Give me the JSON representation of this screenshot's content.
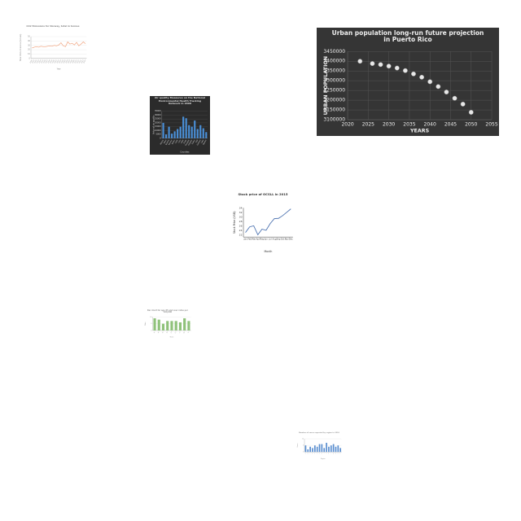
{
  "chart_data": [
    {
      "type": "line",
      "title": "CO2 Emissions for Norway, total in tonnes",
      "x_label": "Year",
      "y_label": "Total CO2 emissions (tonnes)",
      "categories": [
        "1990",
        "1991",
        "1992",
        "1993",
        "1994",
        "1995",
        "1996",
        "1997",
        "1998",
        "1999",
        "2000",
        "2001",
        "2002",
        "2003",
        "2004",
        "2005",
        "2006",
        "2007",
        "2008",
        "2009",
        "2010",
        "2011",
        "2012",
        "2013",
        "2014"
      ],
      "values": [
        24,
        26,
        27,
        26,
        28,
        27,
        27,
        28,
        29,
        28,
        30,
        29,
        31,
        36,
        29,
        27,
        38,
        33,
        35,
        31,
        37,
        29,
        33,
        38,
        34
      ],
      "color": "#f0a07a",
      "ylim": [
        0,
        50
      ],
      "yticks": [
        0,
        10,
        20,
        30,
        40,
        50
      ],
      "grid": true
    },
    {
      "type": "bar",
      "title": "Air quality Measures on the National Environmental Health Tracking Network in 2008",
      "x_label": "Counties",
      "y_label": "Value of air quality",
      "categories": [
        "Adams",
        "Allen",
        "Bartow",
        "Benton",
        "Butler",
        "Clark",
        "Clay",
        "Cobb",
        "Dade",
        "Douglas",
        "Franklin",
        "Fulton",
        "Hall",
        "Jackson",
        "Lake",
        "Marion"
      ],
      "values": [
        20000,
        5000,
        15000,
        6000,
        9000,
        12000,
        15000,
        28000,
        26000,
        17000,
        15000,
        23000,
        12000,
        17000,
        13000,
        8000
      ],
      "color": "#4a90d9",
      "ylim": [
        0,
        35000
      ],
      "yticks": [
        0,
        5000,
        10000,
        15000,
        20000,
        25000,
        30000,
        35000
      ],
      "grid": true
    },
    {
      "type": "scatter",
      "title": "Urban population long-run future projection in Puerto Rico",
      "x_label": "YEARS",
      "y_label": "URBAN POPULATION",
      "x": [
        2023,
        2026,
        2028,
        2030,
        2032,
        2034,
        2036,
        2038,
        2040,
        2042,
        2044,
        2046,
        2048,
        2050
      ],
      "values": [
        3400000,
        3388000,
        3383000,
        3375000,
        3365000,
        3352000,
        3335000,
        3318000,
        3295000,
        3270000,
        3242000,
        3210000,
        3180000,
        3138000
      ],
      "color": "#e8e8e8",
      "xlim": [
        2020,
        2055
      ],
      "xticks": [
        2020,
        2025,
        2030,
        2035,
        2040,
        2045,
        2050,
        2055
      ],
      "ylim": [
        3100000,
        3450000
      ],
      "yticks": [
        3100000,
        3150000,
        3200000,
        3250000,
        3300000,
        3350000,
        3400000,
        3450000
      ],
      "grid": true
    },
    {
      "type": "line",
      "title": "Stock price of OCSLL in 2015",
      "x_label": "Month",
      "y_label": "Stock Price (USD)",
      "categories": [
        "Jan",
        "Feb",
        "Mar",
        "Apr",
        "May",
        "Jun",
        "Jul",
        "Aug",
        "Sep",
        "Oct",
        "Nov",
        "Dec"
      ],
      "values": [
        23.0,
        25.5,
        26.0,
        22.0,
        24.5,
        24.0,
        27.0,
        29.2,
        29.3,
        30.5,
        32.0,
        33.5
      ],
      "color": "#4c72b0",
      "ylim": [
        21,
        34
      ],
      "yticks": [
        22,
        24,
        26,
        28,
        30,
        32,
        34
      ],
      "grid": false
    },
    {
      "type": "bar",
      "title": "Bar chart for age 65 and over rates per 100,000",
      "x_label": "State",
      "y_label": "Rate",
      "categories": [
        "AL",
        "AK",
        "AZ",
        "AR",
        "CA",
        "CO",
        "CT",
        "DE",
        "FL"
      ],
      "values": [
        9,
        8,
        5,
        7,
        7,
        7,
        6,
        9,
        7
      ],
      "color": "#8fc27a",
      "ylim": [
        0,
        10
      ],
      "yticks": [
        0,
        5,
        10
      ],
      "grid": true
    },
    {
      "type": "bar",
      "title": "Number of cases reported by region in 2016",
      "x_label": "Region",
      "y_label": "Cases",
      "categories": [
        "A",
        "B",
        "C",
        "D",
        "E",
        "F",
        "G",
        "H",
        "I",
        "J",
        "K",
        "L",
        "M",
        "N",
        "O",
        "P"
      ],
      "values": [
        5,
        2,
        4,
        3,
        5,
        4,
        6,
        6,
        3,
        7,
        4,
        5,
        6,
        4,
        5,
        3
      ],
      "color": "#5b8fd0",
      "ylim": [
        0,
        10
      ],
      "yticks": [
        0,
        5,
        10
      ],
      "grid": true
    }
  ]
}
